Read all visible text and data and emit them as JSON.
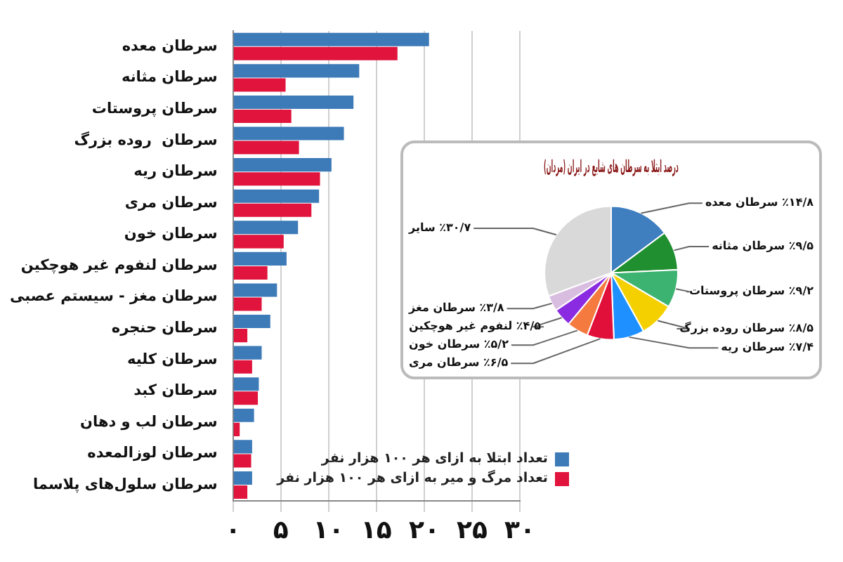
{
  "chart_data": [
    {
      "type": "bar",
      "orientation": "horizontal",
      "categories": [
        "سرطان معده",
        "سرطان مثانه",
        "سرطان پروستات",
        "سرطان  روده بزرگ",
        "سرطان ریه",
        "سرطان مری",
        "سرطان خون",
        "سرطان لنفوم غیر هوچکین",
        "سرطان مغز - سیستم عصبی",
        "سرطان حنجره",
        "سرطان کلیه",
        "سرطان کبد",
        "سرطان لب و دهان",
        "سرطان لوزالمعده",
        "سرطان سلول‌های پلاسما"
      ],
      "series": [
        {
          "name": "تعداد ابتلا به ازای هر ۱۰۰ هزار نفر",
          "color": "#3d7ab8",
          "values": [
            20.5,
            13.2,
            12.6,
            11.6,
            10.3,
            9.0,
            6.8,
            5.6,
            4.6,
            3.9,
            3.0,
            2.7,
            2.2,
            2.0,
            2.0
          ]
        },
        {
          "name": "تعداد مرگ و میر به ازای هر ۱۰۰ هزار نفر",
          "color": "#e0143c",
          "values": [
            17.2,
            5.5,
            6.1,
            6.9,
            9.1,
            8.2,
            5.3,
            3.6,
            3.0,
            1.5,
            2.0,
            2.6,
            0.7,
            1.9,
            1.5
          ]
        }
      ],
      "xlim": [
        0,
        30
      ],
      "xticks": [
        {
          "value": 0,
          "label": "۰"
        },
        {
          "value": 5,
          "label": "۵"
        },
        {
          "value": 10,
          "label": "۱۰"
        },
        {
          "value": 15,
          "label": "۱۵"
        },
        {
          "value": 20,
          "label": "۲۰"
        },
        {
          "value": 25,
          "label": "۲۵"
        },
        {
          "value": 30,
          "label": "۳۰"
        }
      ],
      "grid": "x",
      "legend": "bottom right"
    },
    {
      "type": "pie",
      "title": "درصد ابتلا به سرطان های شایع در ایران (مردان)",
      "categories": [
        "سرطان معده",
        "سرطان مثانه",
        "سرطان پروستات",
        "سرطان روده بزرگ",
        "سرطان ریه",
        "سرطان مری",
        "سرطان خون",
        "لنفوم غیر هوچکین",
        "سرطان مغز",
        "سایر"
      ],
      "values": [
        14.8,
        9.5,
        9.2,
        8.5,
        7.4,
        6.5,
        5.2,
        4.5,
        3.8,
        30.7
      ],
      "value_labels": [
        "٪۱۴/۸",
        "٪۹/۵",
        "٪۹/۲",
        "٪۸/۵",
        "٪۷/۴",
        "٪۶/۵",
        "٪۵/۲",
        "٪۴/۵",
        "٪۳/۸",
        "٪۳۰/۷"
      ],
      "colors": [
        "#3f7fbf",
        "#1f8f2f",
        "#3cb371",
        "#f5d000",
        "#1e90ff",
        "#e0103a",
        "#f47a40",
        "#8a2be2",
        "#d9bde0",
        "#d9d9d9"
      ]
    }
  ]
}
